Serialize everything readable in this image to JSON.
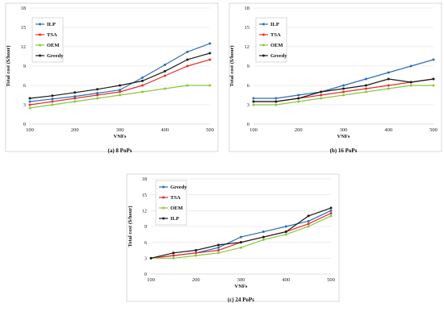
{
  "chart_data": [
    {
      "type": "line",
      "caption": "(a) 8 PoPs",
      "xlabel": "VNFs",
      "ylabel": "Total cost ($/hour)",
      "x": [
        100,
        150,
        200,
        250,
        300,
        350,
        400,
        450,
        500
      ],
      "xticks": [
        100,
        200,
        300,
        400,
        500
      ],
      "xlim": [
        100,
        500
      ],
      "ylim": [
        0,
        18
      ],
      "yticks": [
        0,
        3,
        6,
        9,
        12,
        15,
        18
      ],
      "grid": true,
      "legend_position": "top-left",
      "series": [
        {
          "name": "ILP",
          "color": "#2e6db5",
          "values": [
            3.5,
            3.9,
            4.3,
            4.8,
            5.3,
            7.2,
            9.2,
            11.2,
            12.5
          ]
        },
        {
          "name": "TSA",
          "color": "#e0302f",
          "values": [
            3.0,
            3.5,
            4.0,
            4.5,
            5.0,
            6.0,
            7.5,
            9.0,
            10.0
          ]
        },
        {
          "name": "OEM",
          "color": "#8cc63e",
          "values": [
            2.5,
            3.0,
            3.5,
            4.0,
            4.5,
            5.0,
            5.5,
            6.0,
            6.0
          ]
        },
        {
          "name": "Greedy",
          "color": "#1a1a1a",
          "values": [
            4.0,
            4.4,
            4.9,
            5.4,
            6.0,
            6.7,
            8.2,
            10.0,
            11.0
          ]
        }
      ]
    },
    {
      "type": "line",
      "caption": "(b) 16 PoPs",
      "xlabel": "VNFs",
      "ylabel": "Total cost ($/hour)",
      "x": [
        100,
        150,
        200,
        250,
        300,
        350,
        400,
        450,
        500
      ],
      "xticks": [
        100,
        200,
        300,
        400,
        500
      ],
      "xlim": [
        100,
        500
      ],
      "ylim": [
        0,
        18
      ],
      "yticks": [
        0,
        3,
        6,
        9,
        12,
        15,
        18
      ],
      "grid": true,
      "legend_position": "top-left",
      "series": [
        {
          "name": "ILP",
          "color": "#2e6db5",
          "values": [
            4.0,
            4.0,
            4.5,
            5.0,
            6.0,
            7.0,
            8.0,
            9.0,
            10.0
          ]
        },
        {
          "name": "TSA",
          "color": "#e0302f",
          "values": [
            3.5,
            3.5,
            4.0,
            4.5,
            5.0,
            5.5,
            6.0,
            6.5,
            7.0
          ]
        },
        {
          "name": "OEM",
          "color": "#8cc63e",
          "values": [
            3.0,
            3.0,
            3.5,
            4.0,
            4.5,
            5.0,
            5.5,
            6.0,
            6.0
          ]
        },
        {
          "name": "Greedy",
          "color": "#1a1a1a",
          "values": [
            3.5,
            3.5,
            4.0,
            5.0,
            5.5,
            6.0,
            7.0,
            6.5,
            7.0
          ]
        }
      ]
    },
    {
      "type": "line",
      "caption": "(c) 24 PoPs",
      "xlabel": "VNFs",
      "ylabel": "Total cost ($/hour)",
      "x": [
        100,
        150,
        200,
        250,
        300,
        350,
        400,
        450,
        500
      ],
      "xticks": [
        100,
        200,
        300,
        400,
        500
      ],
      "xlim": [
        100,
        500
      ],
      "ylim": [
        0,
        18
      ],
      "yticks": [
        0,
        3,
        6,
        9,
        12,
        15,
        18
      ],
      "grid": true,
      "legend_position": "top-left",
      "series": [
        {
          "name": "Greedy",
          "color": "#2e6db5",
          "values": [
            3.0,
            3.5,
            4.0,
            5.0,
            7.0,
            8.0,
            9.0,
            10.0,
            12.0
          ]
        },
        {
          "name": "TSA",
          "color": "#e0302f",
          "values": [
            3.0,
            3.5,
            4.0,
            4.5,
            6.0,
            7.0,
            8.0,
            9.5,
            11.5
          ]
        },
        {
          "name": "OEM",
          "color": "#8cc63e",
          "values": [
            3.0,
            3.0,
            3.5,
            4.0,
            5.0,
            6.5,
            7.5,
            9.0,
            11.0
          ]
        },
        {
          "name": "ILP",
          "color": "#1a1a1a",
          "values": [
            3.0,
            4.0,
            4.5,
            5.5,
            6.0,
            7.0,
            8.0,
            11.0,
            12.5
          ]
        }
      ]
    }
  ]
}
